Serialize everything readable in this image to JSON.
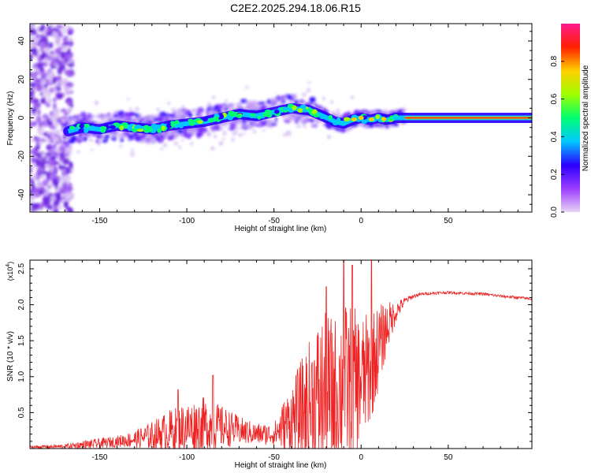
{
  "title": "C2E2.2025.294.18.06.R15",
  "colors": {
    "snr_line": "#ee2222",
    "ridge": "#ff2a2a",
    "axis": "#000000"
  },
  "chart_data": [
    {
      "type": "heatmap",
      "name": "spectrogram",
      "xlabel": "Height of straight line (km)",
      "ylabel": "Frequency (Hz)",
      "xlim": [
        -190,
        98
      ],
      "ylim": [
        -49,
        49
      ],
      "xticks": [
        -150,
        -100,
        -50,
        0,
        50
      ],
      "yticks": [
        -40,
        -20,
        0,
        20,
        40
      ],
      "ridge": {
        "x": [
          -168,
          -160,
          -150,
          -140,
          -130,
          -120,
          -110,
          -100,
          -90,
          -80,
          -70,
          -60,
          -50,
          -40,
          -30,
          -22,
          -15,
          -10,
          -5,
          0,
          5,
          10,
          15,
          20,
          98
        ],
        "y": [
          -7,
          -5,
          -6,
          -4,
          -5,
          -6,
          -4,
          -3,
          -2,
          0,
          2,
          1,
          3,
          5,
          4,
          1,
          -2,
          -3,
          -1,
          0,
          -1,
          0,
          -1,
          0,
          0
        ]
      },
      "colorbar": {
        "label": "Normalized spectral amplitude",
        "range": [
          0,
          1
        ],
        "ticks": [
          "0.0",
          "0.2",
          "0.4",
          "0.6",
          "0.8"
        ],
        "tick_values": [
          0,
          0.2,
          0.4,
          0.6,
          0.8
        ],
        "stops": [
          "#e8d4f4",
          "#9b3bff",
          "#2a00ff",
          "#00c8ff",
          "#00ff70",
          "#a0ff00",
          "#ffd000",
          "#ff2000",
          "#ff1a8c"
        ]
      }
    },
    {
      "type": "line",
      "name": "snr",
      "xlabel": "Height of straight line (km)",
      "ylabel": "SNR (10 * v/v)",
      "multiplier": "(x10",
      "multiplier_exp": "4",
      "multiplier_close": ")",
      "xlim": [
        -190,
        98
      ],
      "ylim": [
        0,
        2.62
      ],
      "xticks": [
        -150,
        -100,
        -50,
        0,
        50
      ],
      "yticks": [
        0.5,
        1.0,
        1.5,
        2.0,
        2.5
      ],
      "ytick_labels": [
        "0.5",
        "1.0",
        "1.5",
        "2.0",
        "2.5"
      ],
      "envelope": {
        "x": [
          -190,
          -170,
          -160,
          -150,
          -140,
          -130,
          -120,
          -110,
          -100,
          -90,
          -80,
          -70,
          -60,
          -50,
          -45,
          -40,
          -35,
          -30,
          -25,
          -20,
          -15,
          -10,
          -5,
          0,
          5,
          10,
          15,
          20,
          25,
          30,
          35,
          40,
          50,
          60,
          70,
          80,
          90,
          98
        ],
        "base": [
          0.02,
          0.03,
          0.05,
          0.07,
          0.1,
          0.13,
          0.18,
          0.24,
          0.3,
          0.32,
          0.3,
          0.25,
          0.2,
          0.2,
          0.3,
          0.4,
          0.5,
          0.6,
          0.7,
          0.7,
          0.75,
          0.85,
          0.9,
          0.95,
          1.1,
          1.4,
          1.7,
          1.9,
          2.05,
          2.12,
          2.15,
          2.16,
          2.17,
          2.16,
          2.15,
          2.12,
          2.1,
          2.08
        ],
        "amp": [
          0.02,
          0.03,
          0.06,
          0.07,
          0.08,
          0.12,
          0.2,
          0.3,
          0.35,
          0.4,
          0.3,
          0.2,
          0.15,
          0.15,
          0.35,
          0.5,
          0.7,
          0.9,
          1.1,
          1.2,
          1.1,
          1.2,
          1.1,
          0.9,
          0.8,
          0.6,
          0.35,
          0.15,
          0.05,
          0.03,
          0.02,
          0.02,
          0.02,
          0.02,
          0.02,
          0.02,
          0.02,
          0.02
        ]
      },
      "spikes": [
        {
          "x": -10,
          "y": 2.62
        },
        {
          "x": -5,
          "y": 2.55
        },
        {
          "x": 6,
          "y": 2.62
        },
        {
          "x": -20,
          "y": 2.25
        },
        {
          "x": -85,
          "y": 1.02
        },
        {
          "x": -105,
          "y": 0.82
        }
      ]
    }
  ]
}
